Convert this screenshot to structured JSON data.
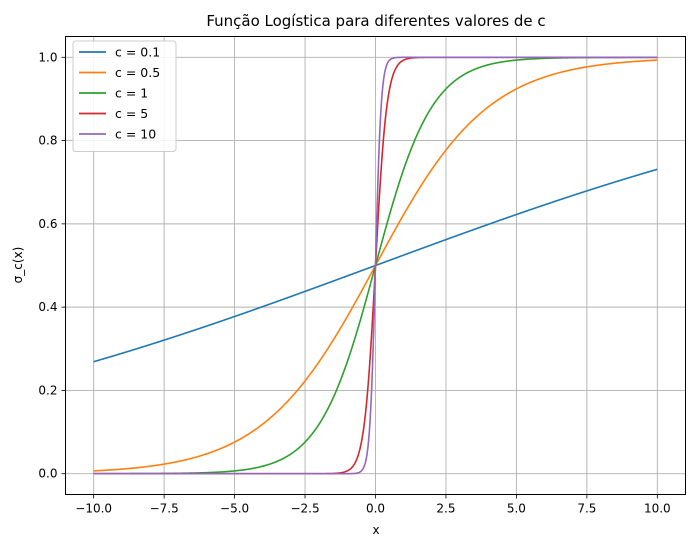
{
  "chart_data": {
    "type": "line",
    "title": "Função Logística para diferentes valores de c",
    "xlabel": "x",
    "ylabel": "σ_c(x)",
    "xlim": [
      -11.0,
      11.0
    ],
    "ylim": [
      -0.05,
      1.05
    ],
    "grid": true,
    "legend_position": "top-left",
    "x_ticks": [
      -10.0,
      -7.5,
      -5.0,
      -2.5,
      0.0,
      2.5,
      5.0,
      7.5,
      10.0
    ],
    "x_tick_labels": [
      "−10.0",
      "−7.5",
      "−5.0",
      "−2.5",
      "0.0",
      "2.5",
      "5.0",
      "7.5",
      "10.0"
    ],
    "y_ticks": [
      0.0,
      0.2,
      0.4,
      0.6,
      0.8,
      1.0
    ],
    "y_tick_labels": [
      "0.0",
      "0.2",
      "0.4",
      "0.6",
      "0.8",
      "1.0"
    ],
    "x_range": [
      -10,
      10
    ],
    "series": [
      {
        "name": "c = 0.1",
        "c": 0.1,
        "color": "#1f77b4"
      },
      {
        "name": "c = 0.5",
        "c": 0.5,
        "color": "#ff7f0e"
      },
      {
        "name": "c = 1",
        "c": 1,
        "color": "#2ca02c"
      },
      {
        "name": "c = 5",
        "c": 5,
        "color": "#d62728"
      },
      {
        "name": "c = 10",
        "c": 10,
        "color": "#9467bd"
      }
    ]
  }
}
